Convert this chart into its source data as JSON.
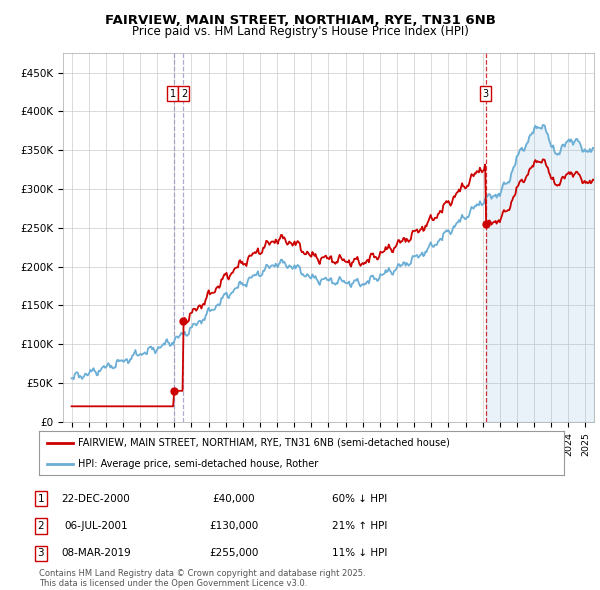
{
  "title_line1": "FAIRVIEW, MAIN STREET, NORTHIAM, RYE, TN31 6NB",
  "title_line2": "Price paid vs. HM Land Registry's House Price Index (HPI)",
  "ylabel_ticks": [
    "£0",
    "£50K",
    "£100K",
    "£150K",
    "£200K",
    "£250K",
    "£300K",
    "£350K",
    "£400K",
    "£450K"
  ],
  "ytick_values": [
    0,
    50000,
    100000,
    150000,
    200000,
    250000,
    300000,
    350000,
    400000,
    450000
  ],
  "xlim": [
    1994.5,
    2025.5
  ],
  "ylim": [
    0,
    475000
  ],
  "hpi_color": "#6baed6",
  "sale_color": "#cc0000",
  "vline1_color": "#aaaacc",
  "vline2_color": "#cc0000",
  "annotation_box_color": "#cc0000",
  "sale_events": [
    {
      "year": 2000.97,
      "price": 40000,
      "label": "1",
      "vline": "blue"
    },
    {
      "year": 2001.51,
      "price": 130000,
      "label": "2",
      "vline": "blue"
    },
    {
      "year": 2019.18,
      "price": 255000,
      "label": "3",
      "vline": "red"
    }
  ],
  "legend_line1": "FAIRVIEW, MAIN STREET, NORTHIAM, RYE, TN31 6NB (semi-detached house)",
  "legend_line2": "HPI: Average price, semi-detached house, Rother",
  "table_rows": [
    {
      "num": "1",
      "date": "22-DEC-2000",
      "price": "£40,000",
      "change": "60% ↓ HPI"
    },
    {
      "num": "2",
      "date": "06-JUL-2001",
      "price": "£130,000",
      "change": "21% ↑ HPI"
    },
    {
      "num": "3",
      "date": "08-MAR-2019",
      "price": "£255,000",
      "change": "11% ↓ HPI"
    }
  ],
  "footer": "Contains HM Land Registry data © Crown copyright and database right 2025.\nThis data is licensed under the Open Government Licence v3.0.",
  "background_color": "#ffffff",
  "grid_color": "#cccccc",
  "shade_start": 2019.18
}
